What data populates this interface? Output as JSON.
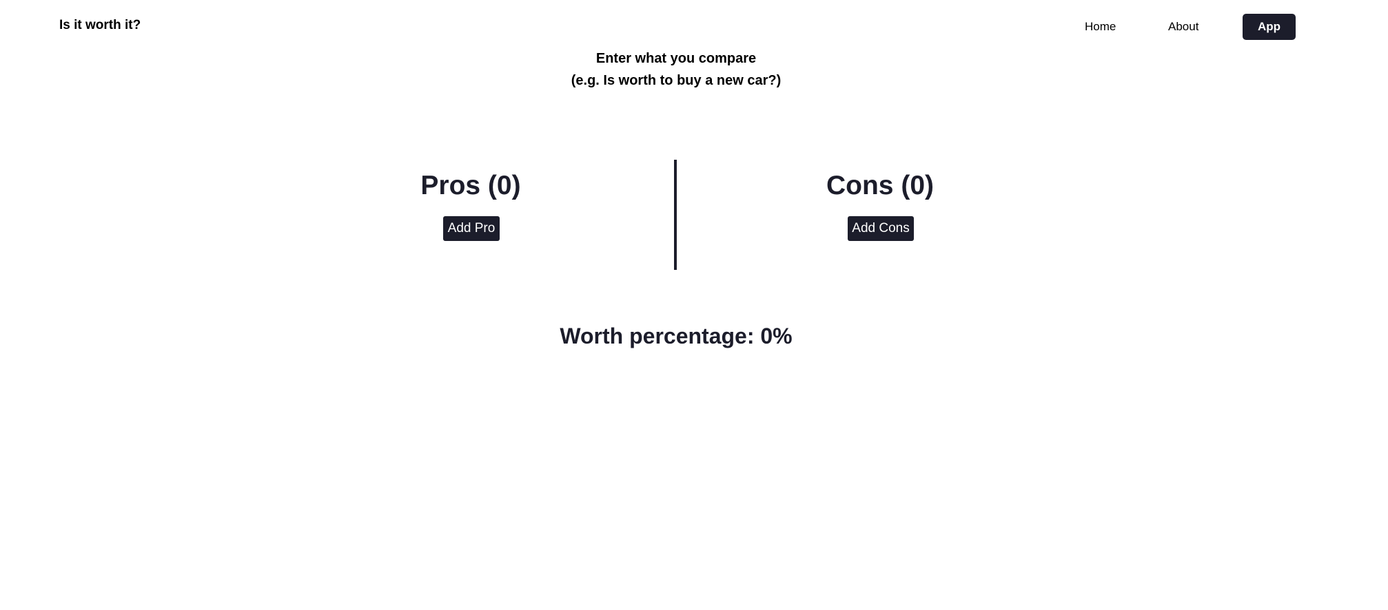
{
  "header": {
    "brand": "Is it worth it?",
    "nav": {
      "home": "Home",
      "about": "About",
      "app": "App"
    }
  },
  "prompt": {
    "line1": "Enter what you compare",
    "line2": "(e.g. Is worth to buy a new car?)"
  },
  "pros": {
    "title": "Pros (0)",
    "add_label": "Add Pro"
  },
  "cons": {
    "title": "Cons (0)",
    "add_label": "Add Cons"
  },
  "result": {
    "worth": "Worth percentage: 0%"
  },
  "colors": {
    "primary_dark": "#1c1d2b",
    "background": "#ffffff"
  }
}
